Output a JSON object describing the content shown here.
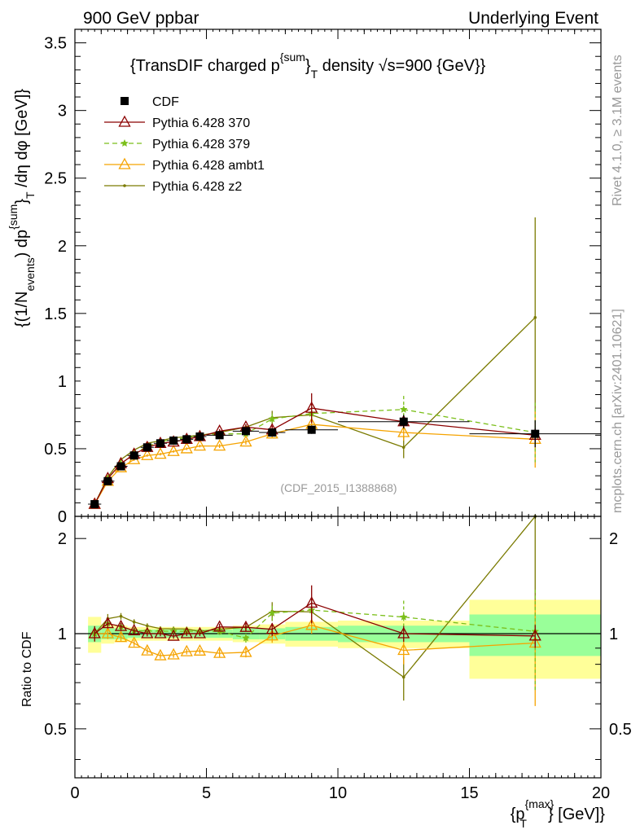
{
  "header": {
    "left": "900 GeV ppbar",
    "right": "Underlying Event"
  },
  "side": {
    "rivet": "Rivet 4.1.0, ≥ 3.1M events",
    "site": "mcplots.cern.ch [arXiv:2401.10621]"
  },
  "watermark": "(CDF_2015_I1388868)",
  "chart_data": {
    "type": "scatter",
    "title": "{TransDIF charged p^{sum}_T density √s=900 {GeV}}",
    "title_parts": {
      "a": "{TransDIF charged p",
      "sup": "{sum",
      "close": "}",
      "sub": "T",
      "b": " density ",
      "sqrt": "√",
      "c": "s=900 {GeV}}"
    },
    "xlabel": "{p_T^{max}} [GeV]",
    "xlabel_parts": {
      "a": "{p",
      "sup": "{max}",
      "sub": "T",
      "b": "} [GeV]}"
    },
    "ylabel": "{(1/N_events) dp^{sum}_T /dη dφ [GeV]}",
    "ylabel_parts": {
      "a": "{(1/N",
      "sub1": "events",
      "b": ") dp",
      "sup": "{sum",
      "c": "}",
      "sub2": "T",
      "d": " /dη  dφ [GeV]}"
    },
    "ratio_ylabel": "Ratio to CDF",
    "xlim": [
      0,
      20
    ],
    "ylim": [
      0,
      3.6
    ],
    "ratio_ylim": [
      0.35,
      2.35
    ],
    "x_ticks": [
      "0",
      "5",
      "10",
      "15",
      "20"
    ],
    "y_ticks": [
      "0",
      "0.5",
      "1",
      "1.5",
      "2",
      "2.5",
      "3",
      "3.5"
    ],
    "ratio_ticks": [
      "0.5",
      "1",
      "2"
    ],
    "x": [
      0.75,
      1.25,
      1.75,
      2.25,
      2.75,
      3.25,
      3.75,
      4.25,
      4.75,
      5.5,
      6.5,
      7.5,
      9.0,
      12.5,
      17.5
    ],
    "data": {
      "name": "CDF",
      "color": "#000000",
      "values": [
        0.09,
        0.26,
        0.37,
        0.45,
        0.51,
        0.54,
        0.56,
        0.57,
        0.59,
        0.6,
        0.63,
        0.62,
        0.64,
        0.7,
        0.61
      ],
      "errors": [
        0.01,
        0.01,
        0.01,
        0.01,
        0.01,
        0.01,
        0.01,
        0.01,
        0.01,
        0.02,
        0.02,
        0.03,
        0.03,
        0.05,
        0.1
      ],
      "x_low": [
        0.5,
        1.0,
        1.5,
        2.0,
        2.5,
        3.0,
        3.5,
        4.0,
        4.5,
        5.0,
        6.0,
        7.0,
        8.0,
        10.0,
        15.0
      ],
      "x_high": [
        1.0,
        1.5,
        2.0,
        2.5,
        3.0,
        3.5,
        4.0,
        4.5,
        5.0,
        6.0,
        7.0,
        8.0,
        10.0,
        15.0,
        20.0
      ],
      "band_stat_ratio": [
        0.06,
        0.04,
        0.04,
        0.03,
        0.03,
        0.03,
        0.03,
        0.03,
        0.03,
        0.03,
        0.04,
        0.04,
        0.05,
        0.06,
        0.15
      ],
      "band_total_ratio": [
        0.13,
        0.07,
        0.06,
        0.05,
        0.05,
        0.05,
        0.05,
        0.05,
        0.05,
        0.05,
        0.06,
        0.07,
        0.09,
        0.1,
        0.28
      ]
    },
    "series": [
      {
        "name": "Pythia 6.428 370",
        "color": "#8b0000",
        "marker": "triangle",
        "dash": "",
        "values": [
          0.09,
          0.28,
          0.39,
          0.46,
          0.51,
          0.54,
          0.55,
          0.57,
          0.59,
          0.63,
          0.66,
          0.64,
          0.8,
          0.7,
          0.6
        ],
        "errors": [
          0.005,
          0.01,
          0.01,
          0.01,
          0.01,
          0.01,
          0.01,
          0.01,
          0.01,
          0.015,
          0.02,
          0.03,
          0.11,
          0.04,
          0.05
        ]
      },
      {
        "name": "Pythia 6.428 379",
        "color": "#7bbf1a",
        "marker": "star",
        "dash": "6,4",
        "values": [
          0.09,
          0.28,
          0.39,
          0.46,
          0.52,
          0.55,
          0.57,
          0.58,
          0.6,
          0.61,
          0.61,
          0.72,
          0.76,
          0.79,
          0.62
        ],
        "errors": [
          0.005,
          0.01,
          0.01,
          0.01,
          0.01,
          0.01,
          0.01,
          0.01,
          0.01,
          0.015,
          0.02,
          0.04,
          0.05,
          0.1,
          0.22
        ]
      },
      {
        "name": "Pythia 6.428 ambt1",
        "color": "#f5a300",
        "marker": "triangle",
        "dash": "",
        "values": [
          0.09,
          0.26,
          0.36,
          0.42,
          0.45,
          0.46,
          0.48,
          0.5,
          0.52,
          0.52,
          0.55,
          0.61,
          0.68,
          0.62,
          0.57
        ],
        "errors": [
          0.005,
          0.01,
          0.01,
          0.01,
          0.01,
          0.01,
          0.01,
          0.01,
          0.01,
          0.015,
          0.02,
          0.03,
          0.04,
          0.06,
          0.21
        ]
      },
      {
        "name": "Pythia 6.428 z2",
        "color": "#7a7a00",
        "marker": "dot",
        "dash": "",
        "values": [
          0.09,
          0.29,
          0.42,
          0.49,
          0.54,
          0.56,
          0.58,
          0.59,
          0.6,
          0.62,
          0.66,
          0.73,
          0.75,
          0.51,
          1.47
        ],
        "errors": [
          0.005,
          0.01,
          0.01,
          0.01,
          0.01,
          0.01,
          0.01,
          0.01,
          0.01,
          0.015,
          0.02,
          0.05,
          0.08,
          0.08,
          0.74
        ]
      }
    ]
  }
}
